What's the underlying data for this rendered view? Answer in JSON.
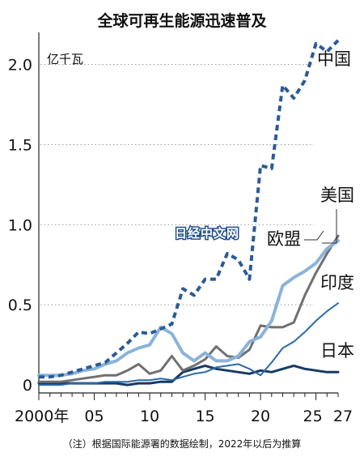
{
  "chart_data": {
    "type": "line",
    "title": "全球可再生能源迅速普及",
    "unit": "亿千瓦",
    "note": "（注）根据国际能源署的数据绘制，2022年以后为推算",
    "watermark": "日经中文网",
    "xlim": [
      2000,
      2027
    ],
    "ylim": [
      -0.05,
      2.2
    ],
    "y_ticks": [
      {
        "value": 0,
        "label": "0"
      },
      {
        "value": 0.5,
        "label": "0.5"
      },
      {
        "value": 1.0,
        "label": "1.0"
      },
      {
        "value": 1.5,
        "label": "1.5"
      },
      {
        "value": 2.0,
        "label": "2.0"
      }
    ],
    "x_ticks": [
      {
        "value": 2000,
        "label": "2000年"
      },
      {
        "value": 2005,
        "label": "05"
      },
      {
        "value": 2010,
        "label": "10"
      },
      {
        "value": 2015,
        "label": "15"
      },
      {
        "value": 2020,
        "label": "20"
      },
      {
        "value": 2025,
        "label": "25"
      },
      {
        "value": 2027,
        "label": "27"
      }
    ],
    "x": [
      2000,
      2001,
      2002,
      2003,
      2004,
      2005,
      2006,
      2007,
      2008,
      2009,
      2010,
      2011,
      2012,
      2013,
      2014,
      2015,
      2016,
      2017,
      2018,
      2019,
      2020,
      2021,
      2022,
      2023,
      2024,
      2025,
      2026,
      2027
    ],
    "series": [
      {
        "name": "中国",
        "color": "#2b5b96",
        "dashed": true,
        "width": 4,
        "values": [
          0.05,
          0.05,
          0.06,
          0.08,
          0.1,
          0.12,
          0.14,
          0.2,
          0.26,
          0.33,
          0.32,
          0.35,
          0.38,
          0.6,
          0.56,
          0.66,
          0.66,
          0.82,
          0.78,
          0.66,
          1.37,
          1.35,
          1.87,
          1.79,
          1.9,
          2.13,
          2.08,
          2.15
        ]
      },
      {
        "name": "美国",
        "color": "#8cb3d9",
        "dashed": false,
        "width": 4,
        "values": [
          0.06,
          0.06,
          0.06,
          0.07,
          0.09,
          0.1,
          0.13,
          0.15,
          0.2,
          0.23,
          0.25,
          0.36,
          0.32,
          0.2,
          0.15,
          0.2,
          0.15,
          0.15,
          0.18,
          0.27,
          0.3,
          0.4,
          0.62,
          0.67,
          0.71,
          0.76,
          0.85,
          0.9
        ]
      },
      {
        "name": "欧盟",
        "color": "#707070",
        "dashed": false,
        "width": 3,
        "values": [
          0.02,
          0.02,
          0.02,
          0.03,
          0.04,
          0.05,
          0.06,
          0.06,
          0.09,
          0.13,
          0.07,
          0.09,
          0.18,
          0.09,
          0.12,
          0.16,
          0.24,
          0.18,
          0.17,
          0.22,
          0.37,
          0.36,
          0.36,
          0.39,
          0.56,
          0.7,
          0.82,
          0.93
        ]
      },
      {
        "name": "印度",
        "color": "#2b6aa8",
        "dashed": false,
        "width": 2,
        "values": [
          0.0,
          0.0,
          0.0,
          0.01,
          0.01,
          0.01,
          0.02,
          0.02,
          0.02,
          0.03,
          0.03,
          0.04,
          0.03,
          0.05,
          0.07,
          0.08,
          0.11,
          0.12,
          0.13,
          0.1,
          0.06,
          0.14,
          0.23,
          0.27,
          0.33,
          0.4,
          0.46,
          0.51
        ]
      },
      {
        "name": "日本",
        "color": "#173a63",
        "dashed": false,
        "width": 3,
        "values": [
          0.01,
          0.01,
          0.01,
          0.01,
          0.01,
          0.01,
          0.01,
          0.01,
          0.0,
          0.01,
          0.01,
          0.02,
          0.02,
          0.08,
          0.1,
          0.12,
          0.1,
          0.09,
          0.08,
          0.07,
          0.09,
          0.08,
          0.1,
          0.12,
          0.1,
          0.09,
          0.08,
          0.08
        ]
      }
    ],
    "grid": {
      "horizontal": true,
      "style": "dotted"
    },
    "legend_placement": "inline-right"
  }
}
